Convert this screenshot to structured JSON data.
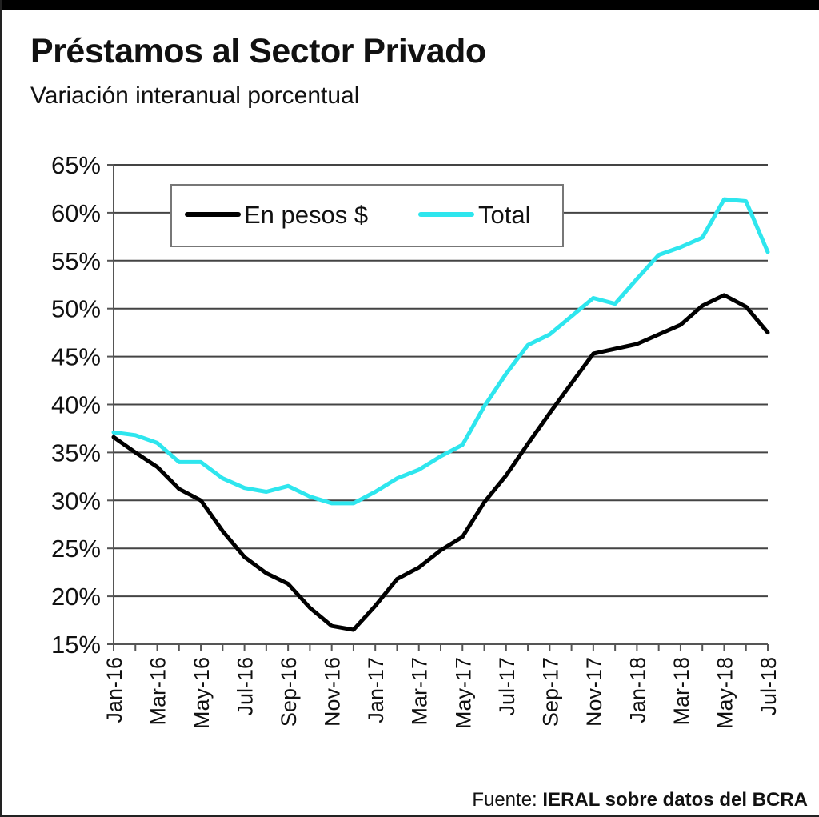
{
  "title": "Préstamos al Sector Privado",
  "subtitle": "Variación interanual porcentual",
  "source": {
    "label": "Fuente:",
    "text": "IERAL sobre datos del BCRA"
  },
  "colors": {
    "pesos": "#000000",
    "total": "#2ee6ee",
    "grid": "#444444"
  },
  "chart_data": {
    "type": "line",
    "title": "Préstamos al Sector Privado",
    "subtitle": "Variación interanual porcentual",
    "xlabel": "",
    "ylabel": "",
    "ylim": [
      15,
      65
    ],
    "yticks": [
      "15%",
      "20%",
      "25%",
      "30%",
      "35%",
      "40%",
      "45%",
      "50%",
      "55%",
      "60%",
      "65%"
    ],
    "ytick_values": [
      15,
      20,
      25,
      30,
      35,
      40,
      45,
      50,
      55,
      60,
      65
    ],
    "xtick_labels": [
      "Jan-16",
      "Mar-16",
      "May-16",
      "Jul-16",
      "Sep-16",
      "Nov-16",
      "Jan-17",
      "Mar-17",
      "May-17",
      "Jul-17",
      "Sep-17",
      "Nov-17",
      "Jan-18",
      "Mar-18",
      "May-18",
      "Jul-18"
    ],
    "xtick_indices": [
      0,
      2,
      4,
      6,
      8,
      10,
      12,
      14,
      16,
      18,
      20,
      22,
      24,
      26,
      28,
      30
    ],
    "x": [
      "Jan-16",
      "Feb-16",
      "Mar-16",
      "Apr-16",
      "May-16",
      "Jun-16",
      "Jul-16",
      "Aug-16",
      "Sep-16",
      "Oct-16",
      "Nov-16",
      "Dec-16",
      "Jan-17",
      "Feb-17",
      "Mar-17",
      "Apr-17",
      "May-17",
      "Jun-17",
      "Jul-17",
      "Aug-17",
      "Sep-17",
      "Oct-17",
      "Nov-17",
      "Dec-17",
      "Jan-18",
      "Feb-18",
      "Mar-18",
      "Apr-18",
      "May-18",
      "Jun-18",
      "Jul-18"
    ],
    "legend": {
      "position": "top-left",
      "entries": [
        "En pesos $",
        "Total"
      ]
    },
    "grid": true,
    "series": [
      {
        "name": "En pesos $",
        "color": "#000000",
        "values": [
          36.6,
          35.0,
          33.5,
          31.2,
          30.0,
          26.8,
          24.1,
          22.4,
          21.3,
          18.8,
          16.9,
          16.5,
          19.0,
          21.8,
          23.0,
          24.8,
          26.2,
          29.8,
          32.6,
          35.9,
          39.1,
          42.2,
          45.3,
          45.8,
          46.3,
          47.3,
          48.3,
          50.3,
          51.4,
          50.2,
          47.5
        ]
      },
      {
        "name": "Total",
        "color": "#2ee6ee",
        "values": [
          37.1,
          36.8,
          36.0,
          34.0,
          34.0,
          32.3,
          31.3,
          30.9,
          31.5,
          30.4,
          29.7,
          29.7,
          30.9,
          32.3,
          33.2,
          34.6,
          35.8,
          39.8,
          43.2,
          46.2,
          47.3,
          49.2,
          51.1,
          50.5,
          53.1,
          55.6,
          56.4,
          57.4,
          61.4,
          61.2,
          55.9
        ]
      }
    ]
  }
}
